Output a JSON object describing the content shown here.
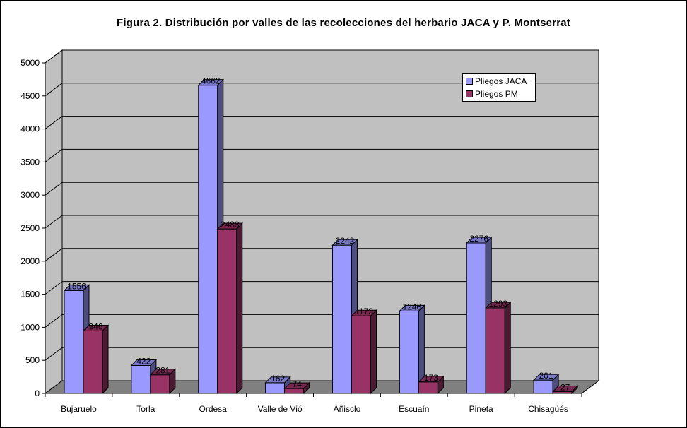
{
  "chart_data": {
    "type": "bar",
    "title": "Figura 2. Distribución por valles de las recolecciones del herbario JACA y  P. Montserrat",
    "xlabel": "",
    "ylabel": "",
    "categories": [
      "Bujaruelo",
      "Torla",
      "Ordesa",
      "Valle de Vió",
      "Añisclo",
      "Escuaín",
      "Pineta",
      "Chisagüés"
    ],
    "series": [
      {
        "name": "Pliegos JACA",
        "values": [
          1556,
          422,
          4662,
          162,
          2242,
          1246,
          2276,
          201
        ],
        "color": "#9999FF"
      },
      {
        "name": "Pliegos PM",
        "values": [
          946,
          281,
          2488,
          74,
          1173,
          173,
          1293,
          27
        ],
        "color": "#993366"
      }
    ],
    "ylim": [
      0,
      5000
    ],
    "yticks": [
      0,
      500,
      1000,
      1500,
      2000,
      2500,
      3000,
      3500,
      4000,
      4500,
      5000
    ],
    "grid": true,
    "legend_position": "top-right",
    "style": "3d-clustered-column",
    "wall_color": "#C0C0C0",
    "floor_color": "#808080"
  }
}
